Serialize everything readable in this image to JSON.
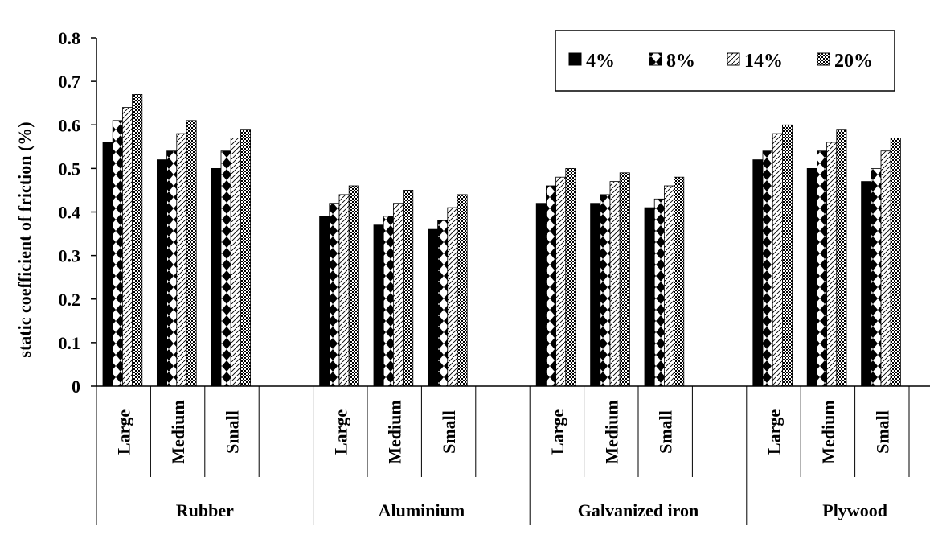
{
  "chart_data": {
    "type": "bar",
    "ylabel": "static coefficient of friction (%)",
    "ylim": [
      0,
      0.8
    ],
    "yticks": [
      "0",
      "0.1",
      "0.2",
      "0.3",
      "0.4",
      "0.5",
      "0.6",
      "0.7",
      "0.8"
    ],
    "groups": [
      "Rubber",
      "Aluminium",
      "Galvanized iron",
      "Plywood"
    ],
    "categories": [
      "Large",
      "Medium",
      "Small"
    ],
    "legend_position": "top-right",
    "series": [
      {
        "name": "4%",
        "pattern": "solid-black",
        "values": [
          [
            0.56,
            0.52,
            0.5
          ],
          [
            0.39,
            0.37,
            0.36
          ],
          [
            0.42,
            0.42,
            0.41
          ],
          [
            0.52,
            0.5,
            0.47
          ]
        ]
      },
      {
        "name": "8%",
        "pattern": "diamond-black",
        "values": [
          [
            0.61,
            0.54,
            0.54
          ],
          [
            0.42,
            0.39,
            0.38
          ],
          [
            0.46,
            0.44,
            0.43
          ],
          [
            0.54,
            0.54,
            0.5
          ]
        ]
      },
      {
        "name": "14%",
        "pattern": "diagonal-white",
        "values": [
          [
            0.64,
            0.58,
            0.57
          ],
          [
            0.44,
            0.42,
            0.41
          ],
          [
            0.48,
            0.47,
            0.46
          ],
          [
            0.58,
            0.56,
            0.54
          ]
        ]
      },
      {
        "name": "20%",
        "pattern": "checker-grey",
        "values": [
          [
            0.67,
            0.61,
            0.59
          ],
          [
            0.46,
            0.45,
            0.44
          ],
          [
            0.5,
            0.49,
            0.48
          ],
          [
            0.6,
            0.59,
            0.57
          ]
        ]
      }
    ]
  }
}
